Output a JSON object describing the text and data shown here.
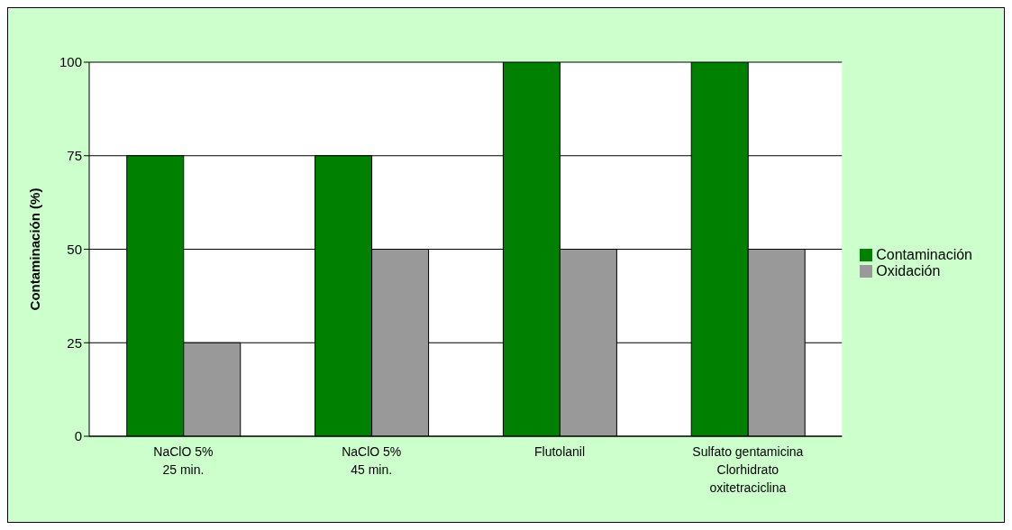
{
  "chart_data": {
    "type": "bar",
    "ylabel": "Contaminación (%)",
    "categories": [
      "NaClO 5%\n25 min.",
      "NaClO 5%\n45 min.",
      "Flutolanil",
      "Sulfato gentamicina\nClorhidrato\noxitetraciclina"
    ],
    "series": [
      {
        "name": "Contaminación",
        "color": "#008000",
        "values": [
          75,
          75,
          100,
          100
        ]
      },
      {
        "name": "Oxidación",
        "color": "#999999",
        "values": [
          25,
          50,
          50,
          50
        ]
      }
    ],
    "ylim": [
      0,
      100
    ],
    "yticks": [
      0,
      25,
      50,
      75,
      100
    ],
    "grid": "y",
    "legend": "right"
  }
}
